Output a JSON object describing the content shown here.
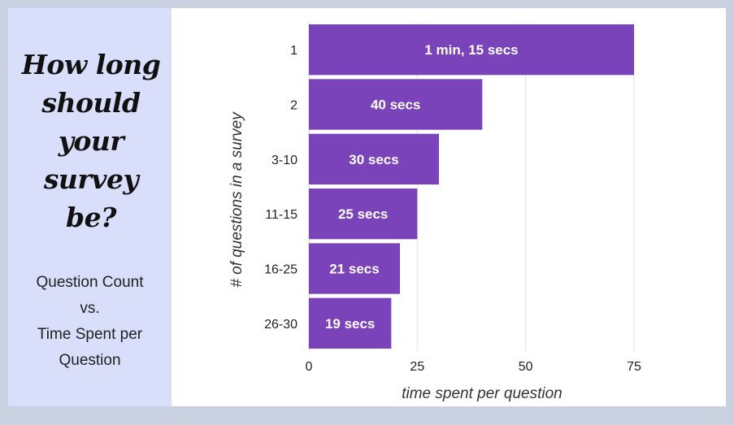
{
  "sidebar": {
    "title_lines": [
      "How long",
      "should",
      "your",
      "survey be?"
    ],
    "subtitle_lines": [
      "Question Count",
      "vs.",
      "Time Spent per",
      "Question"
    ]
  },
  "chart_data": {
    "type": "bar",
    "orientation": "horizontal",
    "categories": [
      "1",
      "2",
      "3-10",
      "11-15",
      "16-25",
      "26-30"
    ],
    "values": [
      75,
      40,
      30,
      25,
      21,
      19
    ],
    "data_labels": [
      "1 min, 15 secs",
      "40 secs",
      "30 secs",
      "25 secs",
      "21 secs",
      "19 secs"
    ],
    "xlabel": "time spent per question",
    "ylabel": "# of questions in a survey",
    "xlim": [
      0,
      95
    ],
    "xticks": [
      0,
      25,
      50,
      75
    ],
    "grid": true,
    "bar_color": "#7b43b9",
    "grid_color": "#e3e3e3"
  }
}
